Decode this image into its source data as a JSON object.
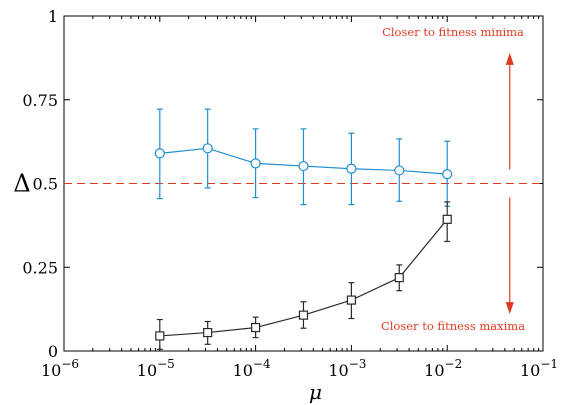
{
  "chart_data": {
    "type": "line",
    "xscale": "log",
    "xlim": [
      1e-06,
      0.1
    ],
    "ylim": [
      0,
      1
    ],
    "xlabel": "μ",
    "ylabel": "Δ",
    "x_ticks": [
      {
        "value": 1e-06,
        "base": "10",
        "exp": "−6"
      },
      {
        "value": 1e-05,
        "base": "10",
        "exp": "−5"
      },
      {
        "value": 0.0001,
        "base": "10",
        "exp": "−4"
      },
      {
        "value": 0.001,
        "base": "10",
        "exp": "−3"
      },
      {
        "value": 0.01,
        "base": "10",
        "exp": "−2"
      },
      {
        "value": 0.1,
        "base": "10",
        "exp": "−1"
      }
    ],
    "y_ticks": [
      {
        "value": 0,
        "label": "0"
      },
      {
        "value": 0.25,
        "label": "0.25"
      },
      {
        "value": 0.5,
        "label": "0.5"
      },
      {
        "value": 0.75,
        "label": "0.75"
      },
      {
        "value": 1,
        "label": "1"
      }
    ],
    "reference_line": {
      "y": 0.5,
      "color": "#e03a1e",
      "style": "dashed"
    },
    "annotations": [
      {
        "text": "Closer to fitness minima",
        "color": "#e03a1e"
      },
      {
        "text": "Closer to fitness maxima",
        "color": "#e03a1e"
      }
    ],
    "arrow": {
      "x": 0.045,
      "y_from": 0.5,
      "up_to": 0.89,
      "down_to": 0.11,
      "color": "#e03a1e"
    },
    "series": [
      {
        "marker": "circle",
        "color": "#1f8fd0",
        "x": [
          1e-05,
          3.16e-05,
          0.0001,
          0.000316,
          0.001,
          0.00316,
          0.01
        ],
        "y": [
          0.59,
          0.605,
          0.56,
          0.552,
          0.544,
          0.539,
          0.528
        ],
        "err_low": [
          0.455,
          0.487,
          0.458,
          0.437,
          0.437,
          0.447,
          0.432
        ],
        "err_high": [
          0.722,
          0.722,
          0.663,
          0.663,
          0.65,
          0.633,
          0.626
        ]
      },
      {
        "marker": "square",
        "color": "#2a2a2a",
        "x": [
          1e-05,
          3.16e-05,
          0.0001,
          0.000316,
          0.001,
          0.00316,
          0.01
        ],
        "y": [
          0.045,
          0.055,
          0.07,
          0.107,
          0.152,
          0.219,
          0.393
        ],
        "err_low": [
          0.005,
          0.02,
          0.04,
          0.068,
          0.097,
          0.18,
          0.327
        ],
        "err_high": [
          0.094,
          0.088,
          0.101,
          0.147,
          0.204,
          0.257,
          0.445
        ]
      }
    ]
  }
}
